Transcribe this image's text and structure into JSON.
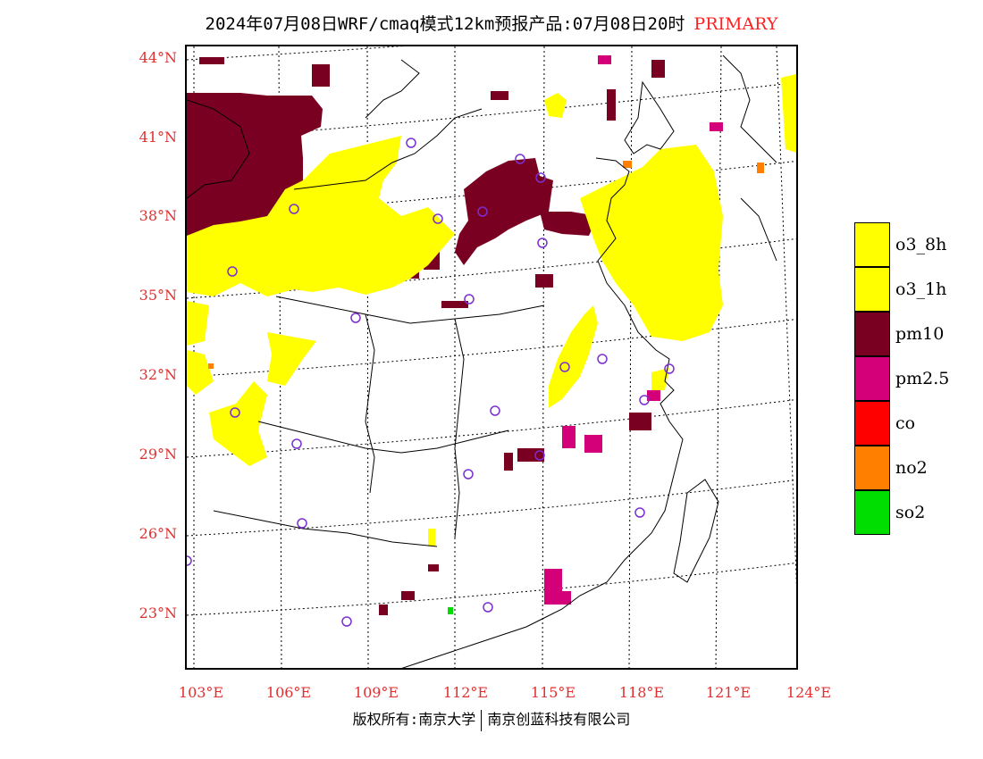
{
  "title": {
    "text": "2024年07月08日WRF/cmaq模式12km预报产品:07月08日20时",
    "tag": "PRIMARY",
    "tag_color": "#ff2020"
  },
  "axes": {
    "lat_labels": [
      "44°N",
      "41°N",
      "38°N",
      "35°N",
      "32°N",
      "29°N",
      "26°N",
      "23°N"
    ],
    "lon_labels": [
      "103°E",
      "106°E",
      "109°E",
      "112°E",
      "115°E",
      "118°E",
      "121°E",
      "124°E"
    ],
    "label_color": "#e03030"
  },
  "legend": [
    {
      "label": "o3_8h",
      "color": "#ffff00"
    },
    {
      "label": "o3_1h",
      "color": "#ffff00"
    },
    {
      "label": "pm10",
      "color": "#7a0022"
    },
    {
      "label": "pm2.5",
      "color": "#d4007a"
    },
    {
      "label": "co",
      "color": "#ff0000"
    },
    {
      "label": "no2",
      "color": "#ff7f00"
    },
    {
      "label": "so2",
      "color": "#00dd00"
    }
  ],
  "footer": {
    "left": "版权所有:南京大学",
    "right": "南京创蓝科技有限公司"
  },
  "map": {
    "station_marker_color": "#7b2fd0",
    "coastline_color": "#000000"
  }
}
